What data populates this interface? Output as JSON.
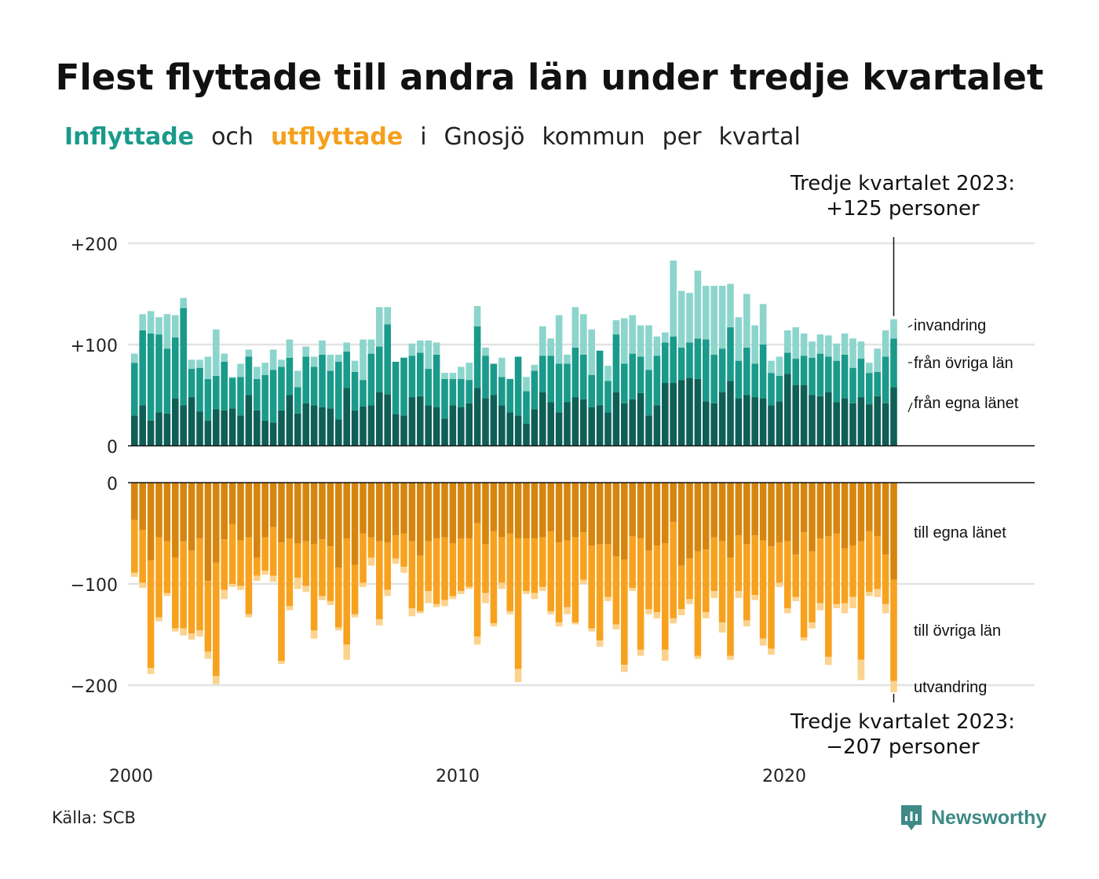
{
  "title": "Flest flyttade till andra län under tredje kvartalet",
  "subtitle": {
    "inflyttade": "Inflyttade",
    "och": "och",
    "utflyttade": "utflyttade",
    "rest": [
      "i",
      "Gnosjö",
      "kommun",
      "per",
      "kvartal"
    ]
  },
  "source": "Källa: SCB",
  "logo": "Newsworthy",
  "colors": {
    "in_own": "#0f5f56",
    "in_other": "#1a9a8a",
    "in_immig": "#8cd5cc",
    "out_own": "#d6860e",
    "out_other": "#f7a21f",
    "out_emig": "#fbd38e"
  },
  "chart_data": {
    "type": "bar",
    "stacked": true,
    "x_axis": {
      "ticks": [
        "2000",
        "2010",
        "2020"
      ],
      "start": "2000 Q1",
      "end": "2023 Q3"
    },
    "top_panel": {
      "ylim": [
        0,
        200
      ],
      "ticks": [
        "0",
        "+100",
        "+200"
      ],
      "grid": true
    },
    "bottom_panel": {
      "ylim": [
        -200,
        0
      ],
      "ticks": [
        "0",
        "−100",
        "−200"
      ],
      "grid": true
    },
    "annotations": {
      "top": [
        "Tredje kvartalet 2023:",
        "+125 personer"
      ],
      "bottom": [
        "Tredje kvartalet 2023:",
        "−207 personer"
      ]
    },
    "series_in": [
      {
        "name": "från egna länet",
        "values": [
          30,
          40,
          25,
          33,
          32,
          47,
          40,
          48,
          34,
          25,
          36,
          35,
          37,
          30,
          50,
          35,
          25,
          23,
          35,
          50,
          32,
          42,
          40,
          38,
          37,
          26,
          57,
          35,
          39,
          40,
          53,
          51,
          31,
          30,
          48,
          49,
          40,
          38,
          27,
          40,
          38,
          42,
          57,
          47,
          50,
          40,
          33,
          30,
          22,
          36,
          53,
          43,
          33,
          43,
          48,
          46,
          38,
          40,
          33,
          53,
          42,
          46,
          52,
          30,
          40,
          62,
          62,
          65,
          67,
          66,
          44,
          42,
          53,
          64,
          47,
          50,
          48,
          47,
          40,
          44,
          71,
          60,
          60,
          50,
          49,
          53,
          43,
          47,
          42,
          48,
          41,
          49,
          42,
          58
        ]
      },
      {
        "name": "från övriga län",
        "values": [
          52,
          74,
          86,
          77,
          64,
          60,
          96,
          28,
          43,
          41,
          33,
          48,
          30,
          38,
          38,
          31,
          45,
          52,
          43,
          37,
          26,
          46,
          38,
          52,
          37,
          57,
          36,
          38,
          26,
          51,
          45,
          69,
          52,
          57,
          41,
          43,
          36,
          52,
          39,
          26,
          28,
          23,
          61,
          42,
          31,
          28,
          33,
          58,
          32,
          38,
          36,
          46,
          48,
          38,
          49,
          44,
          32,
          54,
          31,
          57,
          39,
          45,
          36,
          45,
          49,
          40,
          46,
          32,
          35,
          40,
          61,
          48,
          43,
          53,
          37,
          47,
          33,
          53,
          32,
          25,
          21,
          26,
          29,
          37,
          42,
          35,
          41,
          43,
          35,
          38,
          31,
          24,
          46,
          48
        ]
      },
      {
        "name": "invandring",
        "values": [
          9,
          16,
          22,
          17,
          34,
          22,
          10,
          9,
          8,
          22,
          46,
          8,
          1,
          13,
          7,
          12,
          12,
          20,
          7,
          18,
          16,
          10,
          10,
          14,
          16,
          7,
          9,
          11,
          40,
          14,
          39,
          17,
          0,
          0,
          12,
          12,
          28,
          12,
          6,
          6,
          12,
          17,
          20,
          8,
          0,
          19,
          0,
          0,
          14,
          6,
          29,
          17,
          48,
          9,
          40,
          40,
          45,
          0,
          15,
          14,
          45,
          38,
          31,
          44,
          19,
          10,
          75,
          56,
          49,
          67,
          53,
          68,
          62,
          43,
          43,
          53,
          38,
          40,
          12,
          19,
          22,
          31,
          22,
          16,
          19,
          21,
          17,
          21,
          29,
          17,
          10,
          23,
          26,
          19
        ]
      }
    ],
    "series_out": [
      {
        "name": "till egna länet",
        "values": [
          -37,
          -47,
          -77,
          -54,
          -58,
          -74,
          -58,
          -67,
          -55,
          -97,
          -79,
          -56,
          -41,
          -57,
          -54,
          -74,
          -54,
          -44,
          -59,
          -55,
          -60,
          -58,
          -61,
          -56,
          -63,
          -84,
          -55,
          -81,
          -50,
          -54,
          -58,
          -59,
          -52,
          -50,
          -58,
          -72,
          -58,
          -55,
          -54,
          -60,
          -55,
          -55,
          -40,
          -61,
          -48,
          -54,
          -50,
          -55,
          -55,
          -55,
          -54,
          -48,
          -59,
          -57,
          -54,
          -49,
          -62,
          -61,
          -61,
          -73,
          -76,
          -53,
          -55,
          -67,
          -62,
          -60,
          -39,
          -82,
          -75,
          -68,
          -66,
          -54,
          -58,
          -74,
          -52,
          -61,
          -52,
          -57,
          -63,
          -59,
          -58,
          -71,
          -49,
          -68,
          -55,
          -53,
          -50,
          -65,
          -62,
          -58,
          -48,
          -53,
          -71,
          -96
        ]
      },
      {
        "name": "till övriga län",
        "values": [
          -52,
          -52,
          -106,
          -79,
          -51,
          -70,
          -86,
          -82,
          -91,
          -70,
          -112,
          -50,
          -59,
          -45,
          -76,
          -18,
          -33,
          -48,
          -117,
          -67,
          -34,
          -44,
          -85,
          -56,
          -54,
          -59,
          -105,
          -49,
          -49,
          -20,
          -77,
          -47,
          -23,
          -33,
          -66,
          -55,
          -49,
          -65,
          -62,
          -52,
          -52,
          -48,
          -112,
          -48,
          -91,
          -45,
          -77,
          -129,
          -52,
          -54,
          -49,
          -79,
          -79,
          -66,
          -84,
          -47,
          -82,
          -95,
          -52,
          -67,
          -104,
          -51,
          -110,
          -58,
          -66,
          -105,
          -95,
          -43,
          -40,
          -103,
          -62,
          -53,
          -80,
          -97,
          -55,
          -75,
          -59,
          -97,
          -101,
          -40,
          -66,
          -42,
          -104,
          -70,
          -64,
          -119,
          -70,
          -54,
          -51,
          -117,
          -60,
          -52,
          -49,
          -100
        ]
      },
      {
        "name": "utvandring",
        "values": [
          -4,
          -5,
          -6,
          -4,
          -3,
          -3,
          -7,
          -6,
          -6,
          -7,
          -8,
          -9,
          -3,
          -4,
          -3,
          -5,
          -4,
          -6,
          -3,
          -4,
          -11,
          -6,
          -8,
          -4,
          -4,
          -3,
          -15,
          -3,
          -4,
          -8,
          -6,
          -6,
          -5,
          -6,
          -8,
          -2,
          -12,
          -3,
          -6,
          -3,
          -3,
          -2,
          -8,
          -10,
          -3,
          -6,
          -3,
          -13,
          -3,
          -6,
          -4,
          -3,
          -4,
          -7,
          -2,
          -4,
          -3,
          -6,
          -4,
          -5,
          -7,
          -3,
          -6,
          -5,
          -6,
          -11,
          -5,
          -6,
          -5,
          -3,
          -6,
          -7,
          -10,
          -4,
          -7,
          -6,
          -5,
          -7,
          -6,
          -4,
          -5,
          -4,
          -3,
          -6,
          -7,
          -8,
          -4,
          -10,
          -11,
          -20,
          -4,
          -8,
          -9,
          -11
        ]
      }
    ]
  }
}
